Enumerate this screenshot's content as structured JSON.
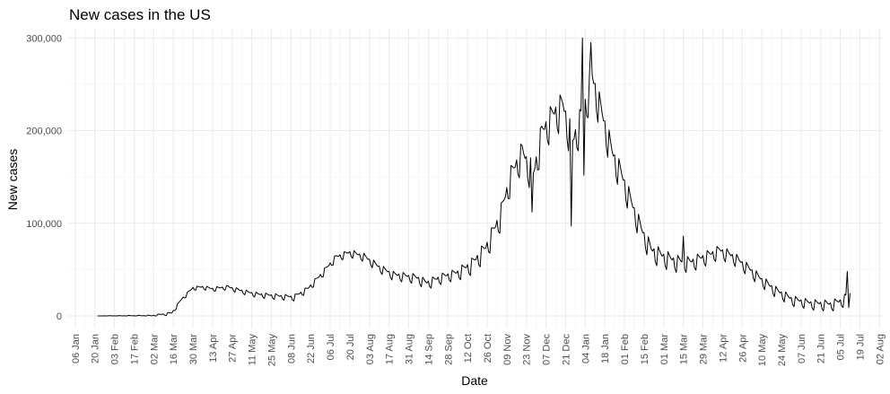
{
  "chart_data": {
    "type": "line",
    "title": "New cases in the US",
    "xlabel": "Date",
    "ylabel": "New cases",
    "x_start_date": "2020-01-22",
    "xlim": [
      "2020-01-01",
      "2021-08-05"
    ],
    "ylim": [
      0,
      310000
    ],
    "grid": true,
    "y_ticks": [
      0,
      100000,
      200000,
      300000
    ],
    "y_tick_labels": [
      "0",
      "100,000",
      "200,000",
      "300,000"
    ],
    "x_ticks": [
      "2020-01-06",
      "2020-01-20",
      "2020-02-03",
      "2020-02-17",
      "2020-03-02",
      "2020-03-16",
      "2020-03-30",
      "2020-04-13",
      "2020-04-27",
      "2020-05-11",
      "2020-05-25",
      "2020-06-08",
      "2020-06-22",
      "2020-07-06",
      "2020-07-20",
      "2020-08-03",
      "2020-08-17",
      "2020-08-31",
      "2020-09-14",
      "2020-09-28",
      "2020-10-12",
      "2020-10-26",
      "2020-11-09",
      "2020-11-23",
      "2020-12-07",
      "2020-12-21",
      "2021-01-04",
      "2021-01-18",
      "2021-02-01",
      "2021-02-15",
      "2021-03-01",
      "2021-03-15",
      "2021-03-29",
      "2021-04-12",
      "2021-04-26",
      "2021-05-10",
      "2021-05-24",
      "2021-06-07",
      "2021-06-21",
      "2021-07-05",
      "2021-07-19",
      "2021-08-02"
    ],
    "x_tick_labels": [
      "06 Jan",
      "20 Jan",
      "03 Feb",
      "17 Feb",
      "02 Mar",
      "16 Mar",
      "30 Mar",
      "13 Apr",
      "27 Apr",
      "11 May",
      "25 May",
      "08 Jun",
      "22 Jun",
      "06 Jul",
      "20 Jul",
      "03 Aug",
      "17 Aug",
      "31 Aug",
      "14 Sep",
      "28 Sep",
      "12 Oct",
      "26 Oct",
      "09 Nov",
      "23 Nov",
      "07 Dec",
      "21 Dec",
      "04 Jan",
      "18 Jan",
      "01 Feb",
      "15 Feb",
      "01 Mar",
      "15 Mar",
      "29 Mar",
      "12 Apr",
      "26 Apr",
      "10 May",
      "24 May",
      "07 Jun",
      "21 Jun",
      "05 Jul",
      "19 Jul",
      "02 Aug"
    ],
    "series": [
      {
        "name": "New cases",
        "keypoints": [
          [
            "2020-01-22",
            0
          ],
          [
            "2020-03-01",
            0
          ],
          [
            "2020-03-15",
            3000
          ],
          [
            "2020-03-22",
            18000
          ],
          [
            "2020-03-30",
            30000
          ],
          [
            "2020-04-06",
            31000
          ],
          [
            "2020-04-13",
            29000
          ],
          [
            "2020-04-24",
            31000
          ],
          [
            "2020-05-03",
            27000
          ],
          [
            "2020-05-15",
            23000
          ],
          [
            "2020-05-31",
            21000
          ],
          [
            "2020-06-10",
            20000
          ],
          [
            "2020-06-20",
            29000
          ],
          [
            "2020-06-30",
            45000
          ],
          [
            "2020-07-10",
            63000
          ],
          [
            "2020-07-20",
            68000
          ],
          [
            "2020-07-30",
            64000
          ],
          [
            "2020-08-10",
            52000
          ],
          [
            "2020-08-20",
            44000
          ],
          [
            "2020-09-05",
            41000
          ],
          [
            "2020-09-13",
            35000
          ],
          [
            "2020-09-25",
            42000
          ],
          [
            "2020-10-05",
            46000
          ],
          [
            "2020-10-15",
            55000
          ],
          [
            "2020-10-25",
            72000
          ],
          [
            "2020-11-04",
            105000
          ],
          [
            "2020-11-12",
            150000
          ],
          [
            "2020-11-20",
            175000
          ],
          [
            "2020-11-28",
            150000
          ],
          [
            "2020-12-04",
            195000
          ],
          [
            "2020-12-12",
            215000
          ],
          [
            "2020-12-19",
            225000
          ],
          [
            "2020-12-26",
            185000
          ],
          [
            "2021-01-02",
            215000
          ],
          [
            "2021-01-09",
            255000
          ],
          [
            "2021-01-16",
            215000
          ],
          [
            "2021-01-23",
            175000
          ],
          [
            "2021-01-30",
            150000
          ],
          [
            "2021-02-06",
            120000
          ],
          [
            "2021-02-13",
            92000
          ],
          [
            "2021-02-20",
            70000
          ],
          [
            "2021-03-01",
            63000
          ],
          [
            "2021-03-10",
            58000
          ],
          [
            "2021-03-20",
            57000
          ],
          [
            "2021-04-01",
            64000
          ],
          [
            "2021-04-10",
            70000
          ],
          [
            "2021-04-20",
            63000
          ],
          [
            "2021-05-01",
            50000
          ],
          [
            "2021-05-10",
            38000
          ],
          [
            "2021-05-20",
            27000
          ],
          [
            "2021-06-01",
            17000
          ],
          [
            "2021-06-15",
            13000
          ],
          [
            "2021-06-28",
            12000
          ],
          [
            "2021-07-05",
            15000
          ],
          [
            "2021-07-12",
            22000
          ]
        ],
        "amplitude_periods": [
          [
            "2020-01-22",
            0
          ],
          [
            "2020-03-25",
            3000
          ],
          [
            "2020-06-15",
            5000
          ],
          [
            "2020-10-01",
            9000
          ],
          [
            "2020-11-20",
            25000
          ],
          [
            "2020-12-15",
            30000
          ],
          [
            "2021-01-10",
            30000
          ],
          [
            "2021-02-10",
            18000
          ],
          [
            "2021-03-15",
            13000
          ],
          [
            "2021-05-01",
            10000
          ],
          [
            "2021-06-10",
            8000
          ],
          [
            "2021-07-12",
            10000
          ]
        ],
        "spikes": [
          [
            "2020-11-27",
            112000
          ],
          [
            "2020-12-25",
            97000
          ],
          [
            "2021-01-02",
            300000
          ],
          [
            "2021-01-03",
            152000
          ],
          [
            "2021-01-08",
            295000
          ],
          [
            "2021-03-15",
            86000
          ],
          [
            "2021-07-10",
            48000
          ],
          [
            "2021-07-11",
            9000
          ]
        ]
      }
    ]
  }
}
